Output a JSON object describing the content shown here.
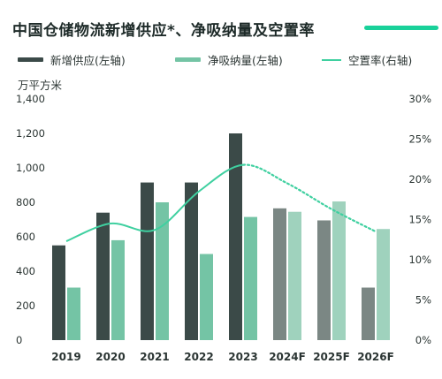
{
  "title": "中国仓储物流新增供应*、净吸纳量及空置率",
  "unit_label": "万平方米",
  "colors": {
    "accent": "#19d19a",
    "supply": "#3b4a48",
    "supply_forecast": "#7b8784",
    "absorption": "#74c4a5",
    "absorption_forecast": "#9fd2bd",
    "vacancy_line": "#3fd0a0"
  },
  "legend": [
    {
      "label": "新增供应(左轴)"
    },
    {
      "label": "净吸纳量(左轴)"
    },
    {
      "label": "空置率(右轴)"
    }
  ],
  "chart_data": {
    "type": "bar",
    "title": "中国仓储物流新增供应*、净吸纳量及空置率",
    "ylabel": "万平方米",
    "categories": [
      "2019",
      "2020",
      "2021",
      "2022",
      "2023",
      "2024F",
      "2025F",
      "2026F"
    ],
    "series": [
      {
        "name": "新增供应(左轴)",
        "type": "bar",
        "axis": "left",
        "values": [
          550,
          740,
          915,
          915,
          1200,
          765,
          695,
          305
        ]
      },
      {
        "name": "净吸纳量(左轴)",
        "type": "bar",
        "axis": "left",
        "values": [
          305,
          580,
          800,
          500,
          715,
          745,
          805,
          645
        ]
      },
      {
        "name": "空置率(右轴)",
        "type": "line",
        "axis": "right",
        "values": [
          12.3,
          14.5,
          13.7,
          18.5,
          21.8,
          19.5,
          16.3,
          13.5
        ],
        "forecast_from": "2023",
        "forecast_style": "dotted"
      }
    ],
    "left_axis": {
      "ylim": [
        0,
        1400
      ],
      "ticks": [
        "0",
        "200",
        "400",
        "600",
        "800",
        "1,000",
        "1,200",
        "1,400"
      ]
    },
    "right_axis": {
      "ylim": [
        0,
        30
      ],
      "ticks": [
        "0%",
        "5%",
        "10%",
        "15%",
        "20%",
        "25%",
        "30%"
      ]
    },
    "legend_position": "top",
    "grid": false
  }
}
